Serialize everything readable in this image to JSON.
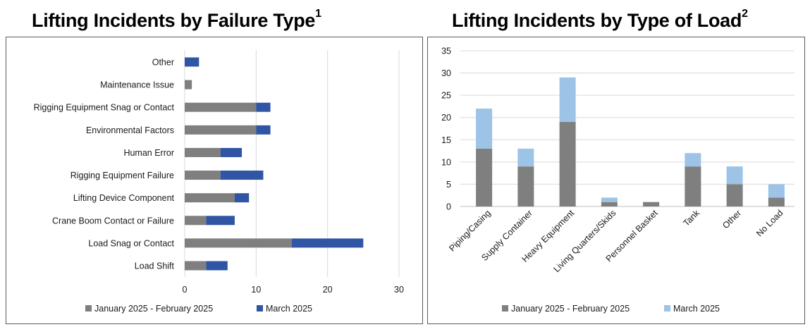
{
  "titles": {
    "left": "Lifting Incidents by Failure Type",
    "left_sup": "1",
    "right": "Lifting Incidents by Type of Load",
    "right_sup": "2"
  },
  "chart_data": [
    {
      "type": "bar",
      "orientation": "horizontal",
      "stacked": true,
      "title": "Lifting Incidents by Failure Type",
      "categories": [
        "Other",
        "Maintenance Issue",
        "Rigging Equipment Snag or Contact",
        "Environmental Factors",
        "Human Error",
        "Rigging Equipment Failure",
        "Lifting Device Component",
        "Crane Boom Contact or Failure",
        "Load Snag or Contact",
        "Load Shift"
      ],
      "series": [
        {
          "name": "January 2025 - February 2025",
          "color": "#7f7f7f",
          "values": [
            0,
            1,
            10,
            10,
            5,
            5,
            7,
            3,
            15,
            3
          ]
        },
        {
          "name": "March 2025",
          "color": "#2f55a4",
          "values": [
            2,
            0,
            2,
            2,
            3,
            6,
            2,
            4,
            10,
            3
          ]
        }
      ],
      "xlim": [
        0,
        30
      ],
      "xticks": [
        "0",
        "10",
        "20",
        "30"
      ],
      "grid": true,
      "legend": "bottom"
    },
    {
      "type": "bar",
      "orientation": "vertical",
      "stacked": true,
      "title": "Lifting Incidents by Type of Load",
      "categories": [
        "Piping/Casing",
        "Supply Container",
        "Heavy Equipment",
        "Living Quarters/Skids",
        "Personnel Basket",
        "Tank",
        "Other",
        "No Load"
      ],
      "series": [
        {
          "name": "January 2025 - February 2025",
          "color": "#7f7f7f",
          "values": [
            13,
            9,
            19,
            1,
            1,
            9,
            5,
            2
          ]
        },
        {
          "name": "March 2025",
          "color": "#9dc3e6",
          "values": [
            9,
            4,
            10,
            1,
            0,
            3,
            4,
            3
          ]
        }
      ],
      "ylim": [
        0,
        35
      ],
      "yticks": [
        "0",
        "5",
        "10",
        "15",
        "20",
        "25",
        "30",
        "35"
      ],
      "grid": true,
      "legend": "bottom"
    }
  ]
}
